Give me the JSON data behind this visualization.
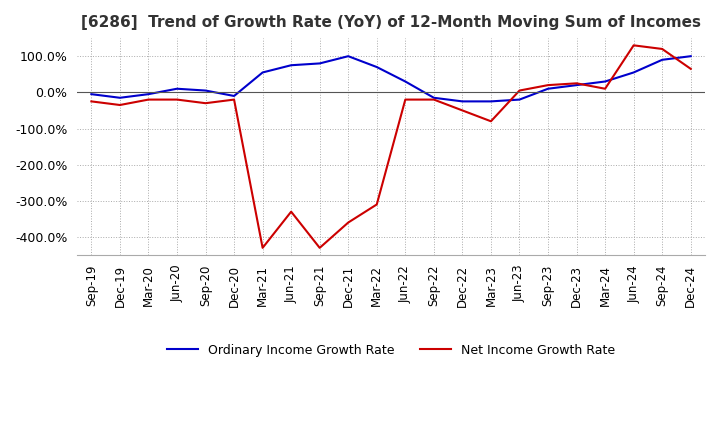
{
  "title": "[6286]  Trend of Growth Rate (YoY) of 12-Month Moving Sum of Incomes",
  "title_fontsize": 11,
  "ylim": [
    -450,
    150
  ],
  "yticks": [
    100,
    0,
    -100,
    -200,
    -300,
    -400
  ],
  "ytick_labels": [
    "100.0%",
    "0.0%",
    "-100.0%",
    "-200.0%",
    "-300.0%",
    "-400.0%"
  ],
  "background_color": "#ffffff",
  "grid_color": "#aaaaaa",
  "ordinary_color": "#0000cc",
  "net_color": "#cc0000",
  "legend_ordinary": "Ordinary Income Growth Rate",
  "legend_net": "Net Income Growth Rate",
  "x_labels": [
    "Sep-19",
    "Dec-19",
    "Mar-20",
    "Jun-20",
    "Sep-20",
    "Dec-20",
    "Mar-21",
    "Jun-21",
    "Sep-21",
    "Dec-21",
    "Mar-22",
    "Jun-22",
    "Sep-22",
    "Dec-22",
    "Mar-23",
    "Jun-23",
    "Sep-23",
    "Dec-23",
    "Mar-24",
    "Jun-24",
    "Sep-24",
    "Dec-24"
  ],
  "ordinary_income_growth": [
    -5,
    -15,
    -5,
    10,
    5,
    -10,
    55,
    75,
    80,
    100,
    70,
    30,
    -15,
    -25,
    -25,
    -20,
    10,
    20,
    30,
    55,
    90,
    100
  ],
  "net_income_growth": [
    -25,
    -35,
    -20,
    -20,
    -30,
    -20,
    -430,
    -330,
    -430,
    -360,
    -310,
    -20,
    -20,
    -50,
    -80,
    5,
    20,
    25,
    10,
    130,
    120,
    65
  ]
}
